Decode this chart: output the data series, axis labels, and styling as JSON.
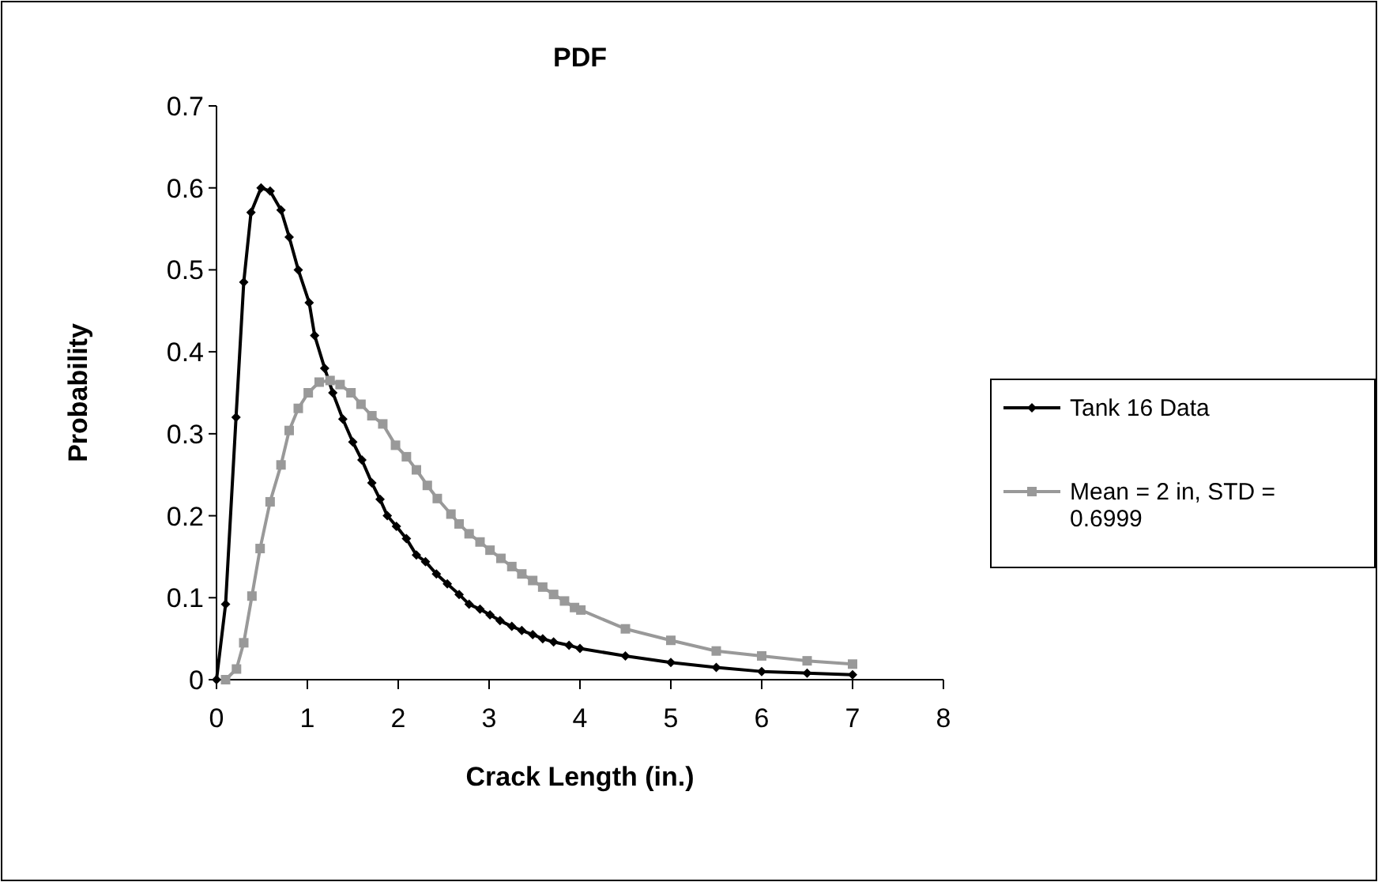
{
  "chart_data": {
    "type": "line",
    "title": "PDF",
    "xlabel": "Crack Length (in.)",
    "ylabel": "Probability",
    "xlim": [
      0,
      8
    ],
    "xticks": [
      0,
      1,
      2,
      3,
      4,
      5,
      6,
      7,
      8
    ],
    "ylim": [
      0,
      0.7
    ],
    "yticks": [
      0,
      0.1,
      0.2,
      0.3,
      0.4,
      0.5,
      0.6,
      0.7
    ],
    "grid": false,
    "legend": "right",
    "line_style": "solid",
    "series": [
      {
        "name": "Tank 16 Data",
        "color": "#000000",
        "marker": "diamond",
        "x": [
          0,
          0.1,
          0.215,
          0.3,
          0.38,
          0.49,
          0.59,
          0.71,
          0.8,
          0.9,
          1.02,
          1.08,
          1.19,
          1.28,
          1.39,
          1.5,
          1.6,
          1.71,
          1.8,
          1.88,
          1.98,
          2.09,
          2.2,
          2.3,
          2.42,
          2.54,
          2.67,
          2.78,
          2.9,
          3.01,
          3.12,
          3.25,
          3.36,
          3.48,
          3.59,
          3.71,
          3.88,
          4.0,
          4.5,
          5.0,
          5.5,
          6.0,
          6.5,
          7.0
        ],
        "values": [
          0,
          0.092,
          0.32,
          0.485,
          0.57,
          0.6,
          0.596,
          0.573,
          0.54,
          0.5,
          0.46,
          0.42,
          0.38,
          0.35,
          0.318,
          0.29,
          0.268,
          0.24,
          0.22,
          0.2,
          0.187,
          0.172,
          0.152,
          0.144,
          0.129,
          0.117,
          0.104,
          0.092,
          0.086,
          0.079,
          0.072,
          0.065,
          0.06,
          0.055,
          0.05,
          0.046,
          0.042,
          0.038,
          0.029,
          0.021,
          0.015,
          0.01,
          0.008,
          0.006
        ]
      },
      {
        "name": "Mean = 2 in, STD = 0.6999",
        "color": "#999999",
        "marker": "square",
        "x": [
          0.1,
          0.22,
          0.3,
          0.39,
          0.48,
          0.59,
          0.71,
          0.8,
          0.9,
          1.01,
          1.13,
          1.25,
          1.36,
          1.48,
          1.59,
          1.71,
          1.83,
          1.97,
          2.09,
          2.2,
          2.32,
          2.43,
          2.58,
          2.67,
          2.78,
          2.9,
          3.01,
          3.13,
          3.25,
          3.36,
          3.48,
          3.59,
          3.71,
          3.83,
          3.94,
          4.01,
          4.5,
          5.0,
          5.5,
          6.0,
          6.5,
          7.0
        ],
        "values": [
          0,
          0.013,
          0.045,
          0.102,
          0.16,
          0.217,
          0.262,
          0.304,
          0.331,
          0.35,
          0.363,
          0.365,
          0.36,
          0.35,
          0.336,
          0.322,
          0.312,
          0.286,
          0.272,
          0.256,
          0.237,
          0.221,
          0.202,
          0.19,
          0.178,
          0.168,
          0.158,
          0.148,
          0.138,
          0.129,
          0.121,
          0.113,
          0.104,
          0.096,
          0.088,
          0.085,
          0.062,
          0.048,
          0.035,
          0.029,
          0.023,
          0.019
        ]
      }
    ]
  }
}
